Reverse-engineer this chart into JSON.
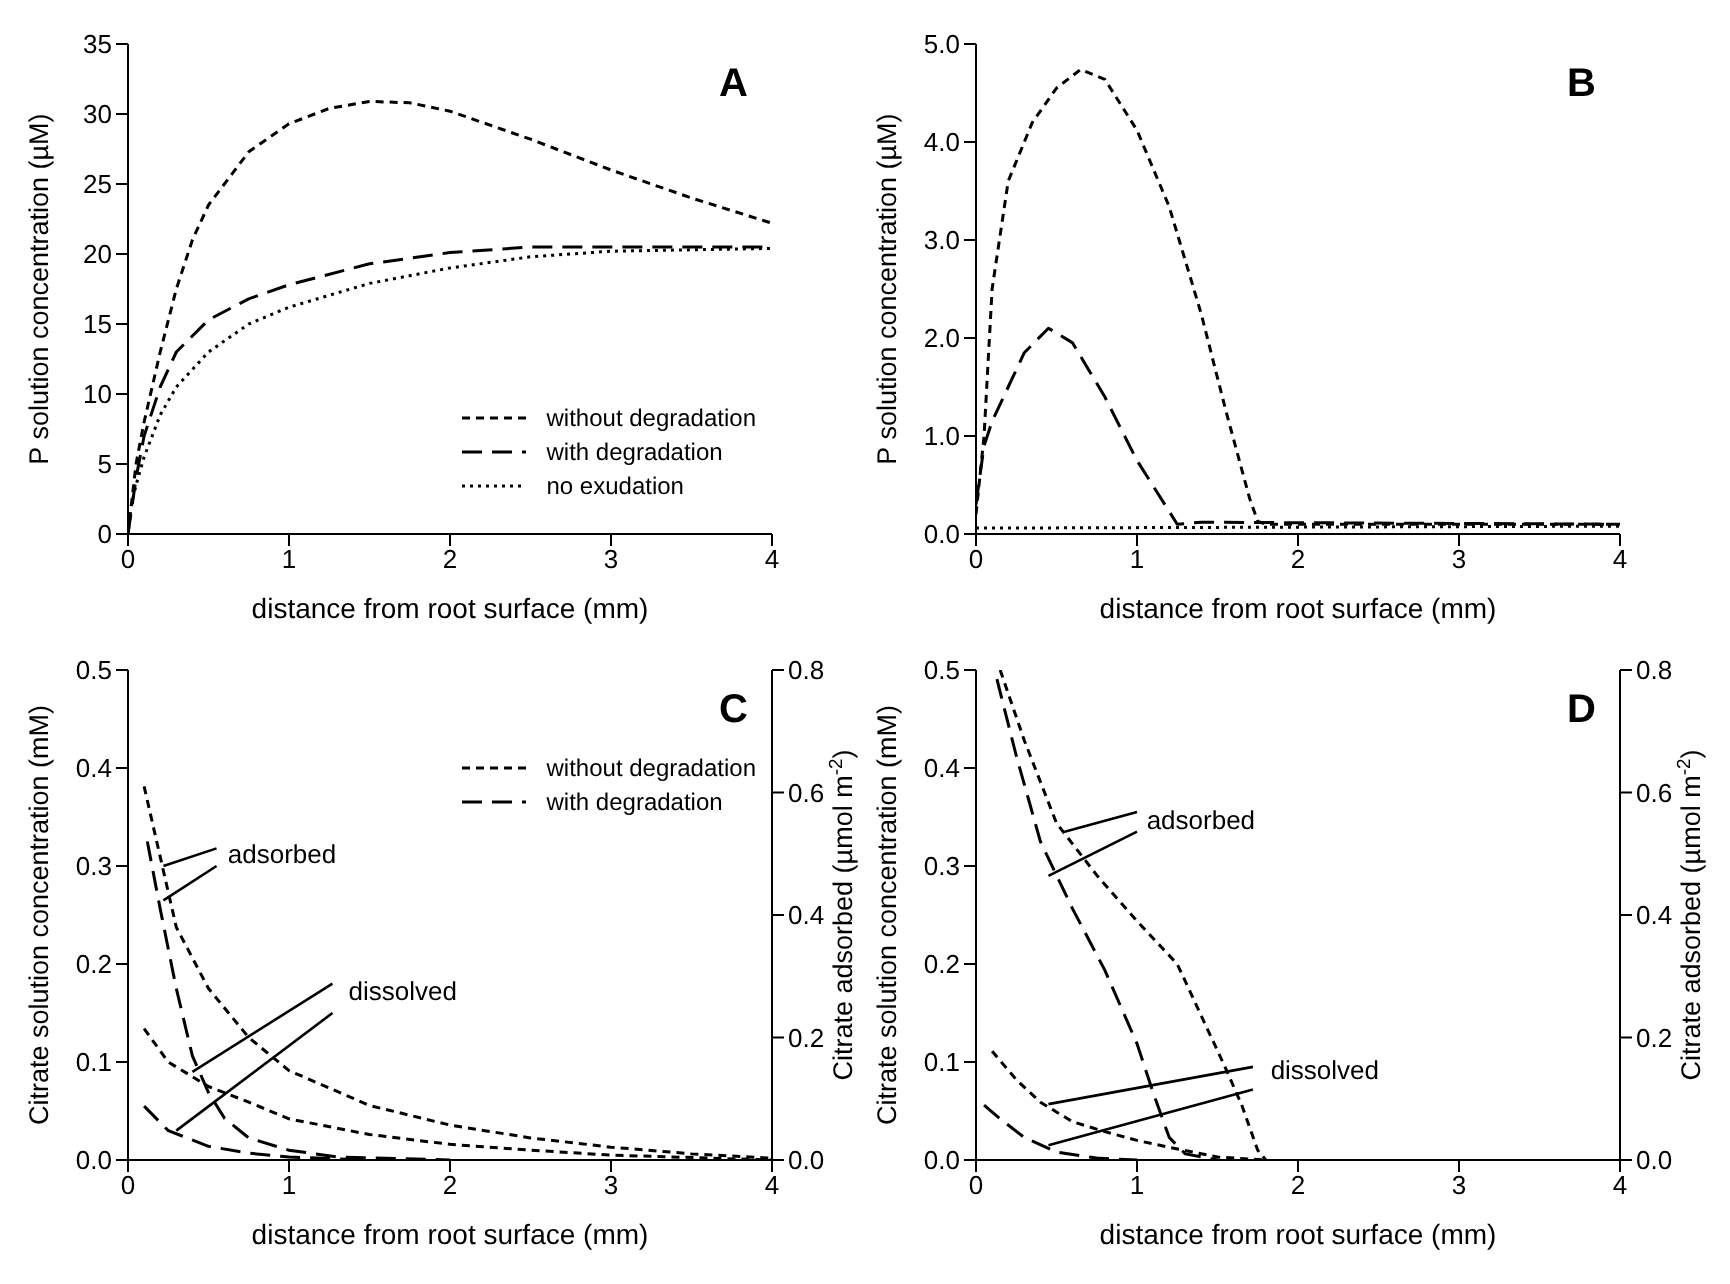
{
  "chart_data": [
    {
      "type": "line",
      "title": "A",
      "xlabel": "distance from root surface (mm)",
      "ylabel": "P solution concentration (µM)",
      "xlim": [
        0,
        4
      ],
      "xticks": [
        0,
        1,
        2,
        3,
        4
      ],
      "ylim": [
        0,
        35
      ],
      "yticks": [
        0,
        5,
        10,
        15,
        20,
        25,
        30,
        35
      ],
      "legend": "bottom right",
      "marker": "none",
      "series": [
        {
          "name": "without degradation",
          "color": "#000000",
          "line_style": "dashed",
          "x": [
            0,
            0.05,
            0.1,
            0.2,
            0.3,
            0.4,
            0.5,
            0.75,
            1,
            1.25,
            1.5,
            1.75,
            2,
            2.5,
            3,
            3.5,
            4
          ],
          "values": [
            0,
            5,
            8,
            13,
            17.5,
            21,
            23.5,
            27.3,
            29.3,
            30.4,
            30.9,
            30.8,
            30.2,
            28.2,
            26,
            24,
            22.2
          ]
        },
        {
          "name": "with degradation",
          "color": "#000000",
          "line_style": "dashed",
          "x": [
            0,
            0.05,
            0.1,
            0.2,
            0.3,
            0.5,
            0.75,
            1,
            1.5,
            2,
            2.5,
            3,
            4
          ],
          "values": [
            0,
            4,
            7,
            10.5,
            13,
            15.3,
            16.8,
            17.8,
            19.3,
            20.1,
            20.5,
            20.5,
            20.5
          ]
        },
        {
          "name": "no exudation",
          "color": "#000000",
          "line_style": "dotted",
          "x": [
            0.02,
            0.05,
            0.1,
            0.2,
            0.3,
            0.5,
            0.75,
            1,
            1.5,
            2,
            2.5,
            3,
            3.5,
            4
          ],
          "values": [
            2,
            3.5,
            5.5,
            8.5,
            10.5,
            13,
            15,
            16.2,
            17.9,
            19,
            19.8,
            20.2,
            20.3,
            20.4
          ]
        }
      ]
    },
    {
      "type": "line",
      "title": "B",
      "xlabel": "distance from root surface (mm)",
      "ylabel": "P solution concentration (µM)",
      "xlim": [
        0,
        4
      ],
      "xticks": [
        0,
        1,
        2,
        3,
        4
      ],
      "ylim": [
        0,
        5
      ],
      "yticks": [
        {
          "value": 0,
          "label": "0.0"
        },
        {
          "value": 1,
          "label": "1.0"
        },
        {
          "value": 2,
          "label": "2.0"
        },
        {
          "value": 3,
          "label": "3.0"
        },
        {
          "value": 4,
          "label": "4.0"
        },
        {
          "value": 5,
          "label": "5.0"
        }
      ],
      "marker": "none",
      "series": [
        {
          "color": "#000000",
          "line_style": "dashed",
          "x": [
            0,
            0.05,
            0.1,
            0.2,
            0.35,
            0.5,
            0.65,
            0.8,
            1,
            1.2,
            1.4,
            1.55,
            1.7,
            1.75,
            1.8,
            4
          ],
          "values": [
            0.2,
            1,
            2.5,
            3.6,
            4.2,
            4.55,
            4.74,
            4.64,
            4.12,
            3.34,
            2.24,
            1.27,
            0.36,
            0.13,
            0.1,
            0.1
          ]
        },
        {
          "color": "#000000",
          "line_style": "dashed",
          "x": [
            0,
            0.05,
            0.1,
            0.2,
            0.3,
            0.45,
            0.6,
            0.8,
            1,
            1.2,
            1.25,
            1.4,
            4
          ],
          "values": [
            0.3,
            0.9,
            1.15,
            1.5,
            1.85,
            2.1,
            1.95,
            1.4,
            0.75,
            0.23,
            0.1,
            0.12,
            0.1
          ]
        },
        {
          "color": "#000000",
          "line_style": "dotted",
          "x": [
            0,
            4
          ],
          "values": [
            0.06,
            0.08
          ]
        }
      ]
    },
    {
      "type": "line",
      "title": "C",
      "xlabel": "distance from root surface (mm)",
      "ylabel": "Citrate solution concentration (mM)",
      "y2label": "Citrate adsorbed (µmol m$^{-2}$)",
      "xlim": [
        0,
        4
      ],
      "xticks": [
        0,
        1,
        2,
        3,
        4
      ],
      "ylim": [
        0,
        0.5
      ],
      "yticks": [
        {
          "value": 0,
          "label": "0.0"
        },
        0.1,
        0.2,
        0.3,
        0.4,
        0.5
      ],
      "y2lim": [
        0,
        0.8
      ],
      "y2ticks": [
        {
          "value": 0,
          "label": "0.0"
        },
        0.2,
        0.4,
        0.6,
        0.8
      ],
      "legend": "top right",
      "marker": "none",
      "annotations": [
        {
          "text": "adsorbed",
          "x": 0.22,
          "y": 0.3
        },
        {
          "text": "dissolved",
          "x": 0.4,
          "y": 0.09
        }
      ],
      "series": [
        {
          "name": "without degradation",
          "color": "#000000",
          "line_style": "dashed",
          "axis": "y2",
          "x": [
            0.1,
            0.3,
            0.5,
            0.75,
            1,
            1.5,
            2,
            2.5,
            3,
            3.5,
            4
          ],
          "values": [
            0.61,
            0.38,
            0.28,
            0.2,
            0.146,
            0.089,
            0.057,
            0.036,
            0.021,
            0.01,
            0.003
          ]
        },
        {
          "name": "with degradation",
          "color": "#000000",
          "line_style": "dashed",
          "axis": "y2",
          "x": [
            0.12,
            0.2,
            0.3,
            0.4,
            0.5,
            0.6,
            0.75,
            1,
            1.3,
            2
          ],
          "values": [
            0.52,
            0.41,
            0.28,
            0.17,
            0.11,
            0.068,
            0.036,
            0.016,
            0.005,
            0
          ]
        },
        {
          "color": "#000000",
          "line_style": "dashed",
          "x": [
            0.1,
            0.25,
            0.5,
            0.75,
            1,
            1.5,
            2,
            2.5,
            3,
            4
          ],
          "values": [
            0.134,
            0.1,
            0.075,
            0.059,
            0.042,
            0.026,
            0.016,
            0.01,
            0.005,
            0
          ]
        },
        {
          "color": "#000000",
          "line_style": "dashed",
          "x": [
            0.1,
            0.25,
            0.5,
            0.75,
            1,
            1.5
          ],
          "values": [
            0.055,
            0.03,
            0.014,
            0.007,
            0.003,
            0
          ]
        }
      ]
    },
    {
      "type": "line",
      "title": "D",
      "xlabel": "distance from root surface (mm)",
      "ylabel": "Citrate solution concentration (mM)",
      "y2label": "Citrate adsorbed (µmol m$^{-2}$)",
      "xlim": [
        0,
        4
      ],
      "xticks": [
        0,
        1,
        2,
        3,
        4
      ],
      "ylim": [
        0,
        0.5
      ],
      "yticks": [
        {
          "value": 0,
          "label": "0.0"
        },
        0.1,
        0.2,
        0.3,
        0.4,
        0.5
      ],
      "y2lim": [
        0,
        0.8
      ],
      "y2ticks": [
        {
          "value": 0,
          "label": "0.0"
        },
        0.2,
        0.4,
        0.6,
        0.8
      ],
      "marker": "none",
      "annotations": [
        {
          "text": "adsorbed",
          "x": 0.55,
          "y": 0.335
        },
        {
          "text": "dissolved",
          "x": 0.45,
          "y": 0.057
        }
      ],
      "series": [
        {
          "color": "#000000",
          "line_style": "dashed",
          "axis": "y2",
          "x": [
            0.15,
            0.3,
            0.5,
            0.75,
            1,
            1.25,
            1.4,
            1.55,
            1.65,
            1.75,
            1.8
          ],
          "values": [
            0.8,
            0.685,
            0.55,
            0.465,
            0.39,
            0.32,
            0.235,
            0.15,
            0.09,
            0.016,
            0
          ]
        },
        {
          "color": "#000000",
          "line_style": "dashed",
          "axis": "y2",
          "x": [
            0.13,
            0.25,
            0.4,
            0.6,
            0.8,
            1,
            1.1,
            1.2,
            1.3,
            1.5
          ],
          "values": [
            0.785,
            0.66,
            0.52,
            0.41,
            0.31,
            0.19,
            0.11,
            0.037,
            0.01,
            0
          ]
        },
        {
          "color": "#000000",
          "line_style": "dashed",
          "x": [
            0.1,
            0.25,
            0.4,
            0.6,
            0.8,
            1,
            1.2,
            1.5,
            1.8
          ],
          "values": [
            0.111,
            0.082,
            0.059,
            0.039,
            0.029,
            0.02,
            0.013,
            0.003,
            0
          ]
        },
        {
          "color": "#000000",
          "line_style": "dashed",
          "x": [
            0.05,
            0.15,
            0.3,
            0.5,
            0.75,
            1
          ],
          "values": [
            0.056,
            0.042,
            0.023,
            0.008,
            0.002,
            0
          ]
        }
      ]
    }
  ]
}
